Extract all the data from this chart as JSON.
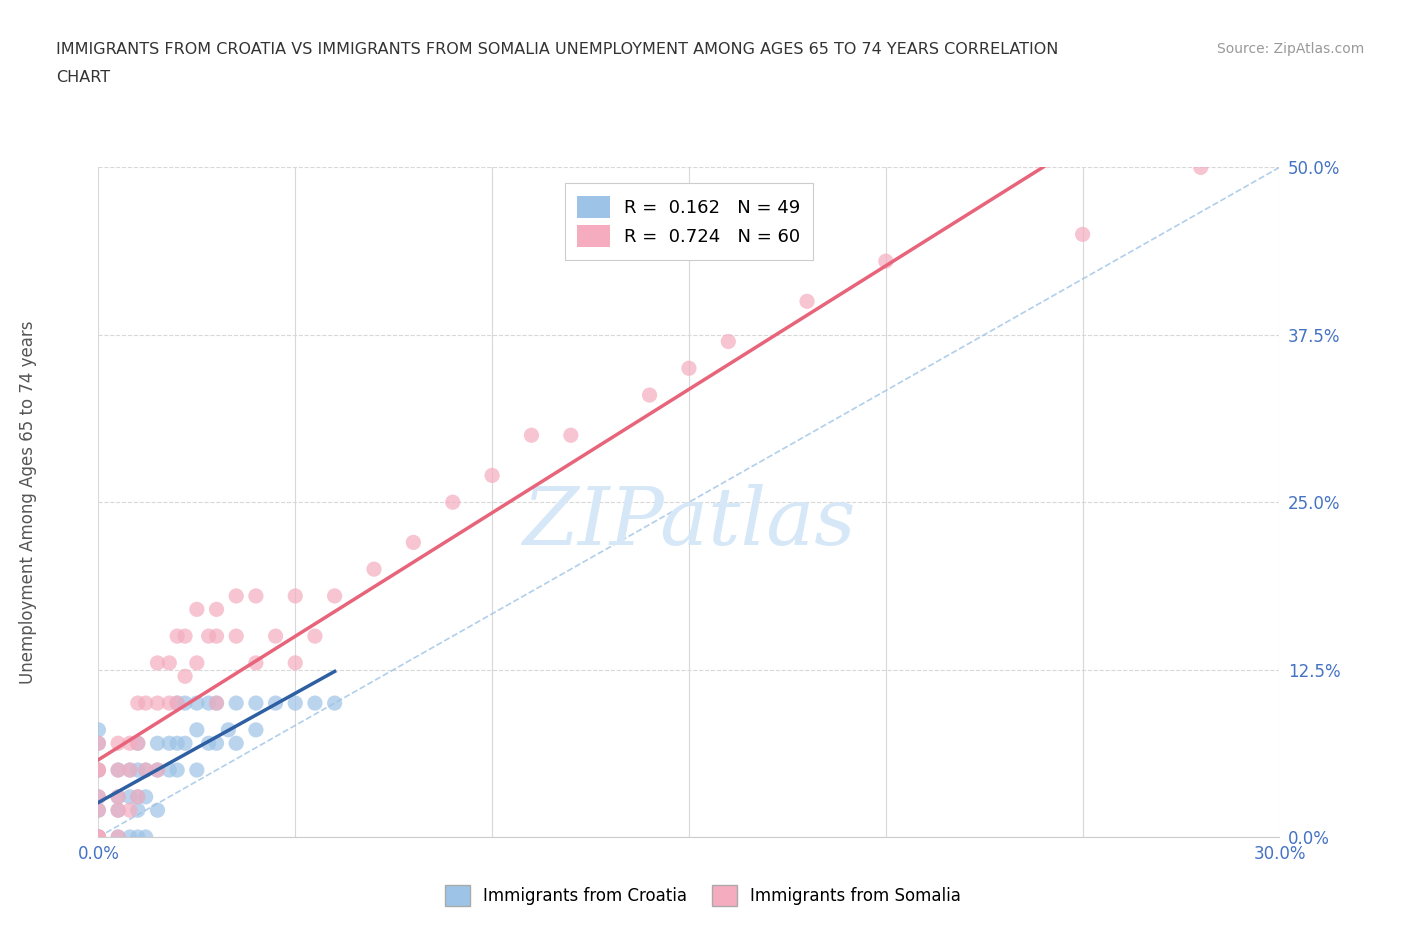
{
  "title_line1": "IMMIGRANTS FROM CROATIA VS IMMIGRANTS FROM SOMALIA UNEMPLOYMENT AMONG AGES 65 TO 74 YEARS CORRELATION",
  "title_line2": "CHART",
  "source": "Source: ZipAtlas.com",
  "ylabel_label": "Unemployment Among Ages 65 to 74 years",
  "xlim": [
    0.0,
    0.3
  ],
  "ylim": [
    0.0,
    0.5
  ],
  "xticks": [
    0.0,
    0.05,
    0.1,
    0.15,
    0.2,
    0.25,
    0.3
  ],
  "yticks": [
    0.0,
    0.125,
    0.25,
    0.375,
    0.5
  ],
  "ytick_labels": [
    "0.0%",
    "12.5%",
    "25.0%",
    "37.5%",
    "50.0%"
  ],
  "croatia_color": "#9dc3e6",
  "somalia_color": "#f4acbe",
  "croatia_line_color": "#2e5fa3",
  "somalia_line_color": "#e8647a",
  "diag_line_color": "#9dc3e6",
  "watermark_text": "ZIPatlas",
  "watermark_color": "#d6e8f7",
  "R_croatia": 0.162,
  "N_croatia": 49,
  "R_somalia": 0.724,
  "N_somalia": 60,
  "croatia_scatter_x": [
    0.0,
    0.0,
    0.0,
    0.0,
    0.0,
    0.0,
    0.0,
    0.0,
    0.005,
    0.005,
    0.005,
    0.005,
    0.008,
    0.008,
    0.008,
    0.01,
    0.01,
    0.01,
    0.01,
    0.01,
    0.012,
    0.012,
    0.012,
    0.015,
    0.015,
    0.015,
    0.018,
    0.018,
    0.02,
    0.02,
    0.02,
    0.022,
    0.022,
    0.025,
    0.025,
    0.025,
    0.028,
    0.028,
    0.03,
    0.03,
    0.033,
    0.035,
    0.035,
    0.04,
    0.04,
    0.045,
    0.05,
    0.055,
    0.06
  ],
  "croatia_scatter_y": [
    0.0,
    0.0,
    0.0,
    0.02,
    0.03,
    0.05,
    0.07,
    0.08,
    0.0,
    0.02,
    0.03,
    0.05,
    0.0,
    0.03,
    0.05,
    0.0,
    0.02,
    0.03,
    0.05,
    0.07,
    0.0,
    0.03,
    0.05,
    0.02,
    0.05,
    0.07,
    0.05,
    0.07,
    0.05,
    0.07,
    0.1,
    0.07,
    0.1,
    0.05,
    0.08,
    0.1,
    0.07,
    0.1,
    0.07,
    0.1,
    0.08,
    0.07,
    0.1,
    0.08,
    0.1,
    0.1,
    0.1,
    0.1,
    0.1
  ],
  "somalia_scatter_x": [
    0.0,
    0.0,
    0.0,
    0.0,
    0.0,
    0.0,
    0.0,
    0.0,
    0.0,
    0.0,
    0.005,
    0.005,
    0.005,
    0.005,
    0.005,
    0.008,
    0.008,
    0.008,
    0.01,
    0.01,
    0.01,
    0.012,
    0.012,
    0.015,
    0.015,
    0.015,
    0.018,
    0.018,
    0.02,
    0.02,
    0.022,
    0.022,
    0.025,
    0.025,
    0.028,
    0.03,
    0.03,
    0.03,
    0.035,
    0.035,
    0.04,
    0.04,
    0.045,
    0.05,
    0.05,
    0.055,
    0.06,
    0.07,
    0.08,
    0.09,
    0.1,
    0.11,
    0.12,
    0.14,
    0.15,
    0.16,
    0.18,
    0.2,
    0.25,
    0.28
  ],
  "somalia_scatter_y": [
    0.0,
    0.0,
    0.0,
    0.0,
    0.0,
    0.02,
    0.03,
    0.05,
    0.05,
    0.07,
    0.0,
    0.02,
    0.03,
    0.05,
    0.07,
    0.02,
    0.05,
    0.07,
    0.03,
    0.07,
    0.1,
    0.05,
    0.1,
    0.05,
    0.1,
    0.13,
    0.1,
    0.13,
    0.1,
    0.15,
    0.12,
    0.15,
    0.13,
    0.17,
    0.15,
    0.1,
    0.15,
    0.17,
    0.15,
    0.18,
    0.13,
    0.18,
    0.15,
    0.13,
    0.18,
    0.15,
    0.18,
    0.2,
    0.22,
    0.25,
    0.27,
    0.3,
    0.3,
    0.33,
    0.35,
    0.37,
    0.4,
    0.43,
    0.45,
    0.5
  ]
}
